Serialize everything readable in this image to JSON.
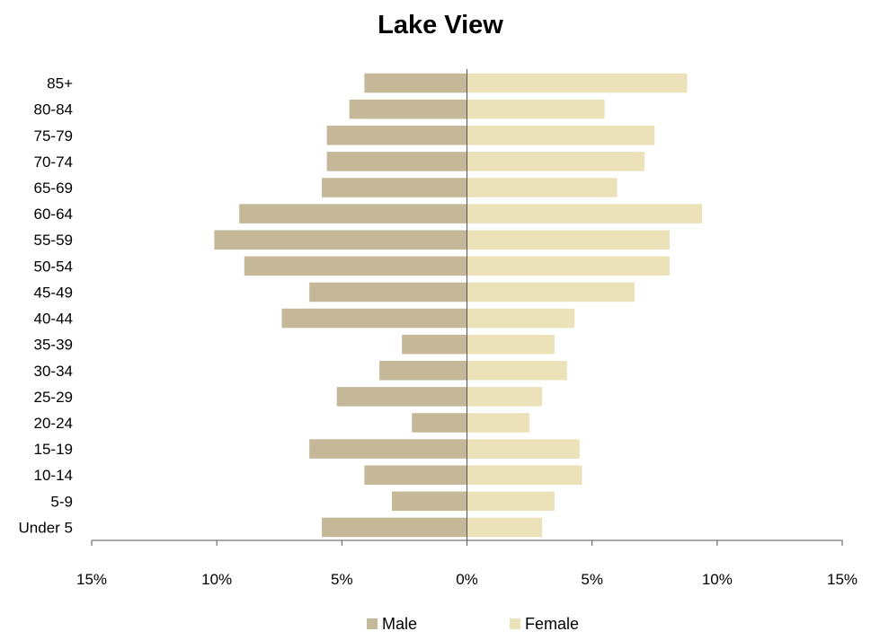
{
  "chart_data": {
    "type": "bar",
    "orientation": "horizontal",
    "chart_kind": "population-pyramid",
    "title": "Lake View",
    "categories": [
      "85+",
      "80-84",
      "75-79",
      "70-74",
      "65-69",
      "60-64",
      "55-59",
      "50-54",
      "45-49",
      "40-44",
      "35-39",
      "30-34",
      "25-29",
      "20-24",
      "15-19",
      "10-14",
      "5-9",
      "Under 5"
    ],
    "series": [
      {
        "name": "Male",
        "color": "#c4b898",
        "values": [
          4.1,
          4.7,
          5.6,
          5.6,
          5.8,
          9.1,
          10.1,
          8.9,
          6.3,
          7.4,
          2.6,
          3.5,
          5.2,
          2.2,
          6.3,
          4.1,
          3.0,
          5.8
        ]
      },
      {
        "name": "Female",
        "color": "#ebe2b9",
        "values": [
          8.8,
          5.5,
          7.5,
          7.1,
          6.0,
          9.4,
          8.1,
          8.1,
          6.7,
          4.3,
          3.5,
          4.0,
          3.0,
          2.5,
          4.5,
          4.6,
          3.5,
          3.0
        ]
      }
    ],
    "xlim": [
      -15,
      15
    ],
    "x_ticks": [
      -15,
      -10,
      -5,
      0,
      5,
      10,
      15
    ],
    "x_tick_labels": [
      "15%",
      "10%",
      "5%",
      "0%",
      "5%",
      "10%",
      "15%"
    ],
    "xlabel": "",
    "ylabel": "",
    "grid": false,
    "legend_position": "bottom"
  }
}
